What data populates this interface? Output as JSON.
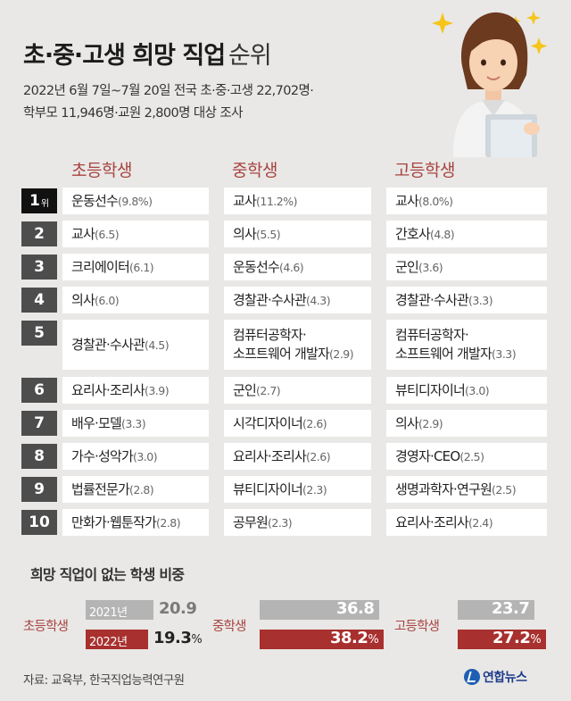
{
  "title": {
    "main": "초·중·고생 희망 직업",
    "suffix": "순위"
  },
  "subtitle": {
    "line1": "2022년 6월 7일~7월 20일 전국 초·중·고생 22,702명·",
    "line2": "학부모 11,946명·교원 2,800명 대상 조사"
  },
  "columns": [
    "초등학생",
    "중학생",
    "고등학생"
  ],
  "rank_suffix": "위",
  "ranks": [
    "1",
    "2",
    "3",
    "4",
    "5",
    "6",
    "7",
    "8",
    "9",
    "10"
  ],
  "chart_data": [
    {
      "type": "table",
      "title": "초·중·고생 희망 직업 순위",
      "columns": [
        "초등학생",
        "중학생",
        "고등학생"
      ],
      "rows": [
        [
          {
            "job": "운동선수",
            "pct": "(9.8%)"
          },
          {
            "job": "교사",
            "pct": "(11.2%)"
          },
          {
            "job": "교사",
            "pct": "(8.0%)"
          }
        ],
        [
          {
            "job": "교사",
            "pct": "(6.5)"
          },
          {
            "job": "의사",
            "pct": "(5.5)"
          },
          {
            "job": "간호사",
            "pct": "(4.8)"
          }
        ],
        [
          {
            "job": "크리에이터",
            "pct": "(6.1)"
          },
          {
            "job": "운동선수",
            "pct": "(4.6)"
          },
          {
            "job": "군인",
            "pct": "(3.6)"
          }
        ],
        [
          {
            "job": "의사",
            "pct": "(6.0)"
          },
          {
            "job": "경찰관·수사관",
            "pct": "(4.3)"
          },
          {
            "job": "경찰관·수사관",
            "pct": "(3.3)"
          }
        ],
        [
          {
            "job": "경찰관·수사관",
            "pct": "(4.5)"
          },
          {
            "job": "컴퓨터공학자·",
            "job2": "소프트웨어 개발자",
            "pct": "(2.9)"
          },
          {
            "job": "컴퓨터공학자·",
            "job2": "소프트웨어 개발자",
            "pct": "(3.3)"
          }
        ],
        [
          {
            "job": "요리사·조리사",
            "pct": "(3.9)"
          },
          {
            "job": "군인",
            "pct": "(2.7)"
          },
          {
            "job": "뷰티디자이너",
            "pct": "(3.0)"
          }
        ],
        [
          {
            "job": "배우·모델",
            "pct": "(3.3)"
          },
          {
            "job": "시각디자이너",
            "pct": "(2.6)"
          },
          {
            "job": "의사",
            "pct": "(2.9)"
          }
        ],
        [
          {
            "job": "가수·성악가",
            "pct": "(3.0)"
          },
          {
            "job": "요리사·조리사",
            "pct": "(2.6)"
          },
          {
            "job": "경영자·CEO",
            "pct": "(2.5)"
          }
        ],
        [
          {
            "job": "법률전문가",
            "pct": "(2.8)"
          },
          {
            "job": "뷰티디자이너",
            "pct": "(2.3)"
          },
          {
            "job": "생명과학자·연구원",
            "pct": "(2.5)"
          }
        ],
        [
          {
            "job": "만화가·웹툰작가",
            "pct": "(2.8)"
          },
          {
            "job": "공무원",
            "pct": "(2.3)"
          },
          {
            "job": "요리사·조리사",
            "pct": "(2.4)"
          }
        ]
      ]
    },
    {
      "type": "bar",
      "title": "희망 직업이 없는 학생 비중",
      "categories": [
        "초등학생",
        "중학생",
        "고등학생"
      ],
      "series": [
        {
          "name": "2021년",
          "values": [
            20.9,
            36.8,
            23.7
          ]
        },
        {
          "name": "2022년",
          "values": [
            19.3,
            38.2,
            27.2
          ]
        }
      ],
      "value_unit": "%",
      "xlim": [
        0,
        38.2
      ]
    }
  ],
  "colors": {
    "accent": "#a84440",
    "bar_2021": "#b4b4b4",
    "bar_2022": "#a8302e",
    "badge": "#4d4d4d"
  },
  "source": "자료: 교육부, 한국직업능력연구원",
  "logo": {
    "text": "연합뉴스",
    "icon": "yonhap-logo-icon"
  }
}
